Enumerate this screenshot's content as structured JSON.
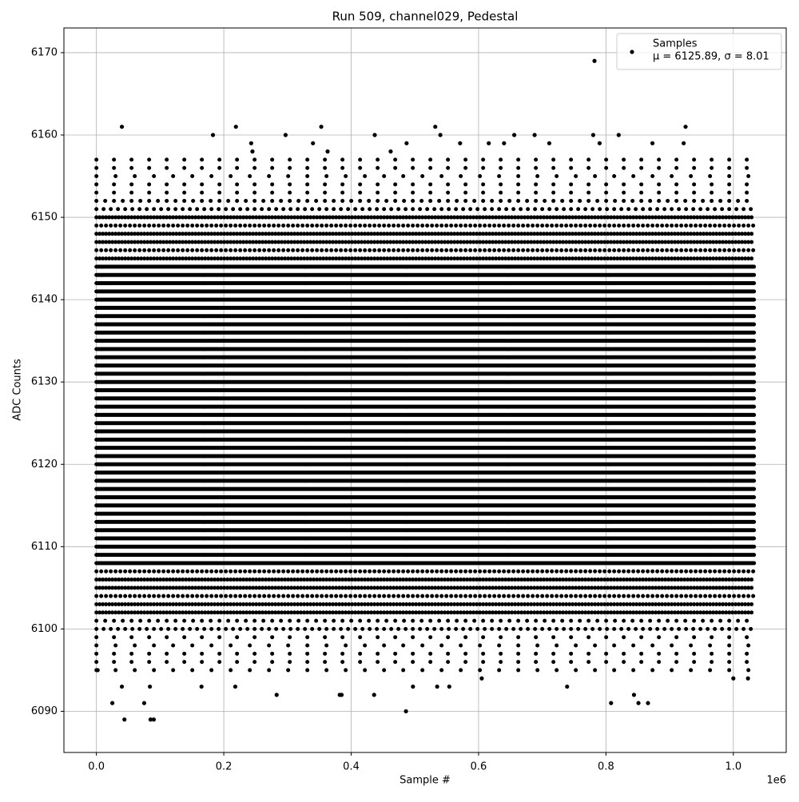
{
  "chart_data": {
    "type": "scatter",
    "title": "Run 509, channel029, Pedestal",
    "xlabel": "Sample #",
    "ylabel": "ADC Counts",
    "x_offset_label": "1e6",
    "xlim": [
      -51000,
      1083000
    ],
    "ylim": [
      6085,
      6173
    ],
    "xticks": [
      {
        "value": 0,
        "label": "0.0"
      },
      {
        "value": 200000,
        "label": "0.2"
      },
      {
        "value": 400000,
        "label": "0.4"
      },
      {
        "value": 600000,
        "label": "0.6"
      },
      {
        "value": 800000,
        "label": "0.8"
      },
      {
        "value": 1000000,
        "label": "1.0"
      }
    ],
    "yticks": [
      6090,
      6100,
      6110,
      6120,
      6130,
      6140,
      6150,
      6160,
      6170
    ],
    "grid": true,
    "legend": "upper right",
    "series": [
      {
        "name": "Samples",
        "color": "#000000",
        "legend_note": "μ = 6125.89, σ = 8.01",
        "levels": [
          6095,
          6096,
          6097,
          6098,
          6099,
          6100,
          6101,
          6102,
          6103,
          6104,
          6105,
          6106,
          6107,
          6108,
          6109,
          6110,
          6111,
          6112,
          6113,
          6114,
          6115,
          6116,
          6117,
          6118,
          6119,
          6120,
          6121,
          6122,
          6123,
          6124,
          6125,
          6126,
          6127,
          6128,
          6129,
          6130,
          6131,
          6132,
          6133,
          6134,
          6135,
          6136,
          6137,
          6138,
          6139,
          6140,
          6141,
          6142,
          6143,
          6144,
          6145,
          6146,
          6147,
          6148,
          6149,
          6150,
          6151,
          6152,
          6153,
          6154,
          6155,
          6156,
          6157
        ],
        "level_x_range": [
          0,
          1033000
        ],
        "x": [
          40000,
          183000,
          219000,
          243000,
          245000,
          297000,
          340000,
          353000,
          363000,
          437000,
          462000,
          487000,
          532000,
          540000,
          571000,
          616000,
          640000,
          656000,
          688000,
          711000,
          782000,
          790000,
          780000,
          820000,
          873000,
          925000,
          922000,
          2000,
          25000,
          40000,
          44000,
          75000,
          84000,
          85000,
          90000,
          165000,
          218000,
          283000,
          382000,
          385000,
          436000,
          486000,
          497000,
          535000,
          554000,
          605000,
          739000,
          808000,
          844000,
          851000,
          866000,
          1000000,
          1023000
        ],
        "values": [
          6161,
          6160,
          6161,
          6159,
          6158,
          6160,
          6159,
          6161,
          6158,
          6160,
          6158,
          6159,
          6161,
          6160,
          6159,
          6159,
          6159,
          6160,
          6160,
          6159,
          6169,
          6159,
          6160,
          6160,
          6159,
          6161,
          6159,
          6095,
          6091,
          6093,
          6089,
          6091,
          6093,
          6089,
          6089,
          6093,
          6093,
          6092,
          6092,
          6092,
          6092,
          6090,
          6093,
          6093,
          6093,
          6094,
          6093,
          6091,
          6092,
          6091,
          6091,
          6094,
          6094
        ]
      }
    ]
  }
}
